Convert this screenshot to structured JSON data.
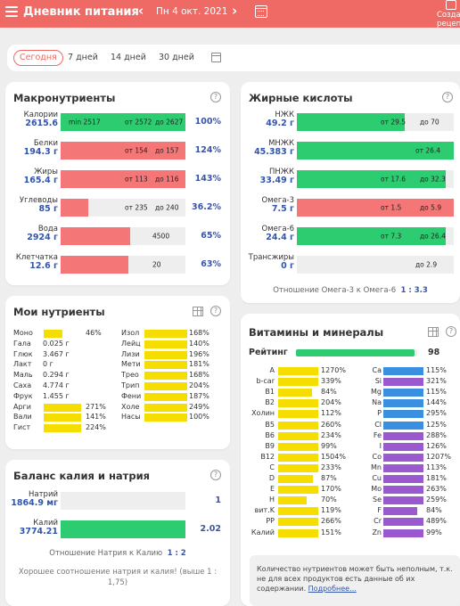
{
  "header": {
    "title": "Дневник питания",
    "date": "Пн 4 окт. 2021",
    "recipe_line1": "Созда",
    "recipe_line2": "рецеп"
  },
  "tabs": [
    "Сегодня",
    "7 дней",
    "14 дней",
    "30 дней"
  ],
  "macro": {
    "title": "Макронутриенты",
    "rows": [
      {
        "name": "Калории",
        "value": "2615.6",
        "bar_fraction": 1.0,
        "color": "#2ecc71",
        "t1": "min 2517",
        "t2": "от 2572",
        "t3": "до 2627",
        "pct": "100%"
      },
      {
        "name": "Белки",
        "value": "194.3 г",
        "bar_fraction": 1.0,
        "color": "#f47676",
        "t1": "",
        "t2": "от 154",
        "t3": "до 157",
        "pct": "124%"
      },
      {
        "name": "Жиры",
        "value": "165.4 г",
        "bar_fraction": 1.0,
        "color": "#f47676",
        "t1": "",
        "t2": "от 113",
        "t3": "до 116",
        "pct": "143%"
      },
      {
        "name": "Углеводы",
        "value": "85 г",
        "bar_fraction": 0.22,
        "color": "#f47676",
        "t1": "",
        "t2": "от 235",
        "t3": "до 240",
        "pct": "36.2%"
      },
      {
        "name": "Вода",
        "value": "2924 г",
        "bar_fraction": 0.56,
        "color": "#f47676",
        "t1": "",
        "t2": "4500",
        "t3": "",
        "pct": "65%"
      },
      {
        "name": "Клетчатка",
        "value": "12.6 г",
        "bar_fraction": 0.54,
        "color": "#f47676",
        "t1": "",
        "t2": "20",
        "t3": "",
        "pct": "63%"
      }
    ]
  },
  "fatty": {
    "title": "Жирные кислоты",
    "rows": [
      {
        "name": "НЖК",
        "value": "49.2 г",
        "bar_fraction": 0.69,
        "color": "#2ecc71",
        "t2": "от 29.5",
        "t3": "до 70"
      },
      {
        "name": "МНЖК",
        "value": "45.383 г",
        "bar_fraction": 1.0,
        "color": "#2ecc71",
        "t2": "",
        "t3": "от 26.4"
      },
      {
        "name": "ПНЖК",
        "value": "33.49 г",
        "bar_fraction": 0.95,
        "color": "#2ecc71",
        "t2": "от 17.6",
        "t3": "до 32.3"
      },
      {
        "name": "Омега-3",
        "value": "7.5 г",
        "bar_fraction": 1.0,
        "color": "#f47676",
        "t2": "от 1.5",
        "t3": "до 5.9"
      },
      {
        "name": "Омега-6",
        "value": "24.4 г",
        "bar_fraction": 0.95,
        "color": "#2ecc71",
        "t2": "от 7.3",
        "t3": "до 26.4"
      },
      {
        "name": "Трансжиры",
        "value": "0 г",
        "bar_fraction": 0.0,
        "color": "#2ecc71",
        "t2": "",
        "t3": "до 2.9"
      }
    ],
    "ratio_label": "Отношение Омега-3 к Омега-6",
    "ratio_value": "1 : 3.3"
  },
  "my": {
    "title": "Мои нутриенты",
    "left": [
      {
        "name": "Моно",
        "value": "",
        "bar": 0.5,
        "pct": "46%"
      },
      {
        "name": "Гала",
        "value": "0.025 г",
        "bar": 0,
        "pct": ""
      },
      {
        "name": "Глюк",
        "value": "3.467 г",
        "bar": 0,
        "pct": ""
      },
      {
        "name": "Лакт",
        "value": "0 г",
        "bar": 0,
        "pct": ""
      },
      {
        "name": "Маль",
        "value": "0.294 г",
        "bar": 0,
        "pct": ""
      },
      {
        "name": "Саха",
        "value": "4.774 г",
        "bar": 0,
        "pct": ""
      },
      {
        "name": "Фрук",
        "value": "1.455 г",
        "bar": 0,
        "pct": ""
      },
      {
        "name": "Арги",
        "value": "",
        "bar": 1,
        "pct": "271%"
      },
      {
        "name": "Вали",
        "value": "",
        "bar": 1,
        "pct": "141%"
      },
      {
        "name": "Гист",
        "value": "",
        "bar": 1,
        "pct": "224%"
      }
    ],
    "right": [
      {
        "name": "Изол",
        "pct": "168%"
      },
      {
        "name": "Лейц",
        "pct": "140%"
      },
      {
        "name": "Лизи",
        "pct": "196%"
      },
      {
        "name": "Мети",
        "pct": "181%"
      },
      {
        "name": "Трео",
        "pct": "168%"
      },
      {
        "name": "Трип",
        "pct": "204%"
      },
      {
        "name": "Фени",
        "pct": "187%"
      },
      {
        "name": "Холе",
        "pct": "249%"
      },
      {
        "name": "Насы",
        "pct": "100%"
      }
    ]
  },
  "vit": {
    "title": "Витамины и минералы",
    "rating_label": "Рейтинг",
    "rating_value": "98",
    "left": [
      {
        "name": "A",
        "pct": "1270%",
        "bar": 1
      },
      {
        "name": "b-car",
        "pct": "339%",
        "bar": 1
      },
      {
        "name": "B1",
        "pct": "84%",
        "bar": 0.84
      },
      {
        "name": "B2",
        "pct": "204%",
        "bar": 1
      },
      {
        "name": "Холин",
        "pct": "112%",
        "bar": 1
      },
      {
        "name": "B5",
        "pct": "260%",
        "bar": 1
      },
      {
        "name": "B6",
        "pct": "234%",
        "bar": 1
      },
      {
        "name": "B9",
        "pct": "99%",
        "bar": 0.99
      },
      {
        "name": "B12",
        "pct": "1504%",
        "bar": 1
      },
      {
        "name": "C",
        "pct": "233%",
        "bar": 1
      },
      {
        "name": "D",
        "pct": "87%",
        "bar": 0.87
      },
      {
        "name": "E",
        "pct": "170%",
        "bar": 1
      },
      {
        "name": "H",
        "pct": "70%",
        "bar": 0.7
      },
      {
        "name": "вит.K",
        "pct": "119%",
        "bar": 1
      },
      {
        "name": "PP",
        "pct": "266%",
        "bar": 1
      },
      {
        "name": "Калий",
        "pct": "151%",
        "bar": 1
      }
    ],
    "right": [
      {
        "name": "Ca",
        "pct": "115%",
        "color": "#3a8fe0",
        "bar": 1
      },
      {
        "name": "Si",
        "pct": "321%",
        "color": "#9b59d0",
        "bar": 1
      },
      {
        "name": "Mg",
        "pct": "115%",
        "color": "#3a8fe0",
        "bar": 1
      },
      {
        "name": "Na",
        "pct": "144%",
        "color": "#3a8fe0",
        "bar": 1
      },
      {
        "name": "P",
        "pct": "295%",
        "color": "#3a8fe0",
        "bar": 1
      },
      {
        "name": "Cl",
        "pct": "125%",
        "color": "#3a8fe0",
        "bar": 1
      },
      {
        "name": "Fe",
        "pct": "288%",
        "color": "#9b59d0",
        "bar": 1
      },
      {
        "name": "I",
        "pct": "126%",
        "color": "#9b59d0",
        "bar": 1
      },
      {
        "name": "Co",
        "pct": "1207%",
        "color": "#9b59d0",
        "bar": 1
      },
      {
        "name": "Mn",
        "pct": "113%",
        "color": "#9b59d0",
        "bar": 1
      },
      {
        "name": "Cu",
        "pct": "181%",
        "color": "#9b59d0",
        "bar": 1
      },
      {
        "name": "Mo",
        "pct": "263%",
        "color": "#9b59d0",
        "bar": 1
      },
      {
        "name": "Se",
        "pct": "259%",
        "color": "#9b59d0",
        "bar": 1
      },
      {
        "name": "F",
        "pct": "84%",
        "color": "#9b59d0",
        "bar": 0.84
      },
      {
        "name": "Cr",
        "pct": "489%",
        "color": "#9b59d0",
        "bar": 1
      },
      {
        "name": "Zn",
        "pct": "99%",
        "color": "#9b59d0",
        "bar": 0.99
      }
    ],
    "footnote": "Количество нутриентов может быть неполным, т.к. не для всех продуктов есть данные об их содержании.",
    "more_link": "Подробнее..."
  },
  "kna": {
    "title": "Баланс калия и натрия",
    "rows": [
      {
        "name": "Натрий",
        "value": "1864.9 мг",
        "bar_fraction": 0.0,
        "num": "1"
      },
      {
        "name": "Калий",
        "value": "3774.21",
        "bar_fraction": 1.0,
        "num": "2.02"
      }
    ],
    "ratio_label": "Отношение Натрия к Калию",
    "ratio_value": "1 : 2",
    "comment": "Хорошее соотношение натрия и калия! (выше 1 : 1,75)"
  },
  "colors": {
    "header": "#ef6a64",
    "accent": "#3b55a0",
    "green": "#2ecc71",
    "red": "#f47676",
    "yellow": "#f5dd00",
    "blue": "#3a8fe0",
    "purple": "#9b59d0"
  }
}
